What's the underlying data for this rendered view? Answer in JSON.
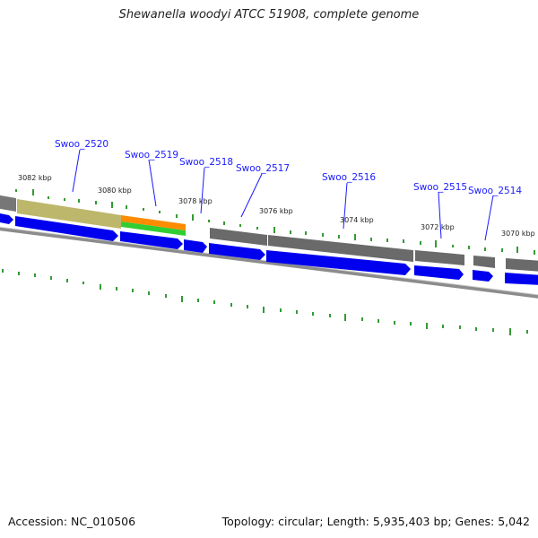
{
  "title": "Shewanella woodyi ATCC 51908, complete genome",
  "footer": {
    "accession": "Accession: NC_010506",
    "summary": "Topology: circular; Length: 5,935,403 bp; Genes: 5,042"
  },
  "colors": {
    "forward_gene": "#0000ee",
    "gene_shade": "#6a6a6a",
    "gc_skew": "#008000",
    "backbone": "#8c8c8c",
    "label": "#1a1aff"
  },
  "kbp_labels": [
    "3082 kbp",
    "3080 kbp",
    "3078 kbp",
    "3076 kbp",
    "3074 kbp",
    "3072 kbp",
    "3070 kbp"
  ],
  "genes": [
    {
      "name": "Swoo_2520"
    },
    {
      "name": "Swoo_2519"
    },
    {
      "name": "Swoo_2518"
    },
    {
      "name": "Swoo_2517"
    },
    {
      "name": "Swoo_2516"
    },
    {
      "name": "Swoo_2515"
    },
    {
      "name": "Swoo_2514"
    }
  ]
}
